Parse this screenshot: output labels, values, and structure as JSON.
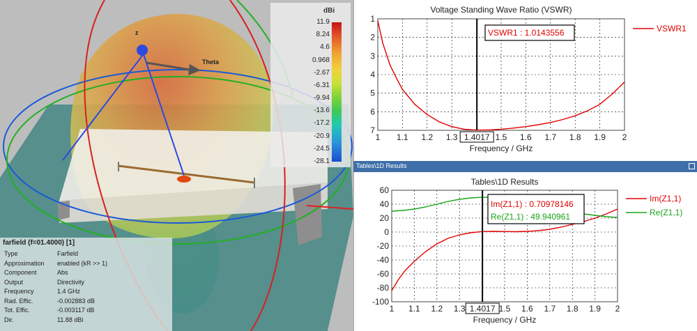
{
  "viewport": {
    "axis_z": "z",
    "axis_theta": "Theta",
    "colorbar": {
      "unit": "dBi",
      "ticks": [
        "11.9",
        "8.24",
        "4.6",
        "0.968",
        "-2.67",
        "-6.31",
        "-9.94",
        "-13.6",
        "-17.2",
        "-20.9",
        "-24.5",
        "-28.1"
      ]
    },
    "info": {
      "title": "farfield (f=01.4000) [1]",
      "rows": [
        {
          "key": "Type",
          "value": "Farfield"
        },
        {
          "key": "Approximation",
          "value": "enabled (kR >> 1)"
        },
        {
          "key": "Component",
          "value": "Abs"
        },
        {
          "key": "Output",
          "value": "Directivity"
        },
        {
          "key": "Frequency",
          "value": "1.4 GHz"
        },
        {
          "key": "Rad. Effic.",
          "value": "-0.002883 dB"
        },
        {
          "key": "Tot. Effic.",
          "value": "-0.003117 dB"
        },
        {
          "key": "Dir.",
          "value": "11.88 dBi"
        }
      ]
    }
  },
  "tabbar": {
    "label": "Tables\\1D Results"
  },
  "chart_data": [
    {
      "type": "line",
      "title": "Voltage Standing Wave Ratio (VSWR)",
      "xlabel": "Frequency / GHz",
      "ylabel": "",
      "xlim": [
        1,
        2
      ],
      "ylim": [
        1,
        7
      ],
      "xticks": [
        "1",
        "1.1",
        "1.2",
        "1.3",
        "1.4017",
        "1.5",
        "1.6",
        "1.7",
        "1.8",
        "1.9",
        "2"
      ],
      "yticks": [
        "1",
        "2",
        "3",
        "4",
        "5",
        "6",
        "7"
      ],
      "marker_x": 1.4017,
      "marker_label": "1.4017",
      "annotation": "VSWR1 : 1.0143556",
      "series": [
        {
          "name": "VSWR1",
          "color": "#e00000",
          "x": [
            1,
            1.02,
            1.05,
            1.08,
            1.1,
            1.15,
            1.2,
            1.25,
            1.3,
            1.35,
            1.4,
            1.45,
            1.5,
            1.55,
            1.6,
            1.65,
            1.7,
            1.75,
            1.8,
            1.85,
            1.9,
            1.95,
            2
          ],
          "y": [
            6.9,
            5.7,
            4.5,
            3.7,
            3.2,
            2.4,
            1.85,
            1.45,
            1.2,
            1.06,
            1.01,
            1.02,
            1.06,
            1.12,
            1.2,
            1.3,
            1.42,
            1.58,
            1.78,
            2.05,
            2.4,
            2.95,
            3.6
          ]
        }
      ]
    },
    {
      "type": "line",
      "title": "Tables\\1D Results",
      "xlabel": "Frequency / GHz",
      "ylabel": "",
      "xlim": [
        1,
        2
      ],
      "ylim": [
        -100,
        60
      ],
      "xticks": [
        "1",
        "1.1",
        "1.2",
        "1.3",
        "1.4017",
        "1.5",
        "1.6",
        "1.7",
        "1.8",
        "1.9",
        "2"
      ],
      "yticks": [
        "60",
        "40",
        "20",
        "0",
        "-20",
        "-40",
        "-60",
        "-80",
        "-100"
      ],
      "marker_x": 1.4017,
      "marker_label": "1.4017",
      "annotations": [
        "Im(Z1,1) : 0.70978146",
        "Re(Z1,1) : 49.940961"
      ],
      "series": [
        {
          "name": "Im(Z1,1)",
          "color": "#e00000",
          "x": [
            1,
            1.03,
            1.06,
            1.1,
            1.15,
            1.2,
            1.25,
            1.3,
            1.35,
            1.4,
            1.45,
            1.5,
            1.55,
            1.6,
            1.65,
            1.7,
            1.75,
            1.8,
            1.85,
            1.9,
            1.95,
            2
          ],
          "y": [
            -84,
            -68,
            -55,
            -42,
            -28,
            -17,
            -9,
            -4,
            -1,
            0.7,
            1,
            0.8,
            0.5,
            1,
            2,
            4,
            7,
            11,
            15,
            20,
            26,
            33
          ]
        },
        {
          "name": "Re(Z1,1)",
          "color": "#1aa31a",
          "x": [
            1,
            1.05,
            1.1,
            1.15,
            1.2,
            1.25,
            1.3,
            1.35,
            1.4,
            1.45,
            1.5,
            1.55,
            1.6,
            1.65,
            1.7,
            1.75,
            1.8,
            1.85,
            1.9,
            1.95,
            2
          ],
          "y": [
            30,
            31,
            33,
            36,
            40,
            44,
            47,
            49,
            49.9,
            49.5,
            47,
            44,
            40,
            36,
            33,
            30,
            28,
            26,
            24,
            22,
            21
          ]
        }
      ]
    }
  ]
}
